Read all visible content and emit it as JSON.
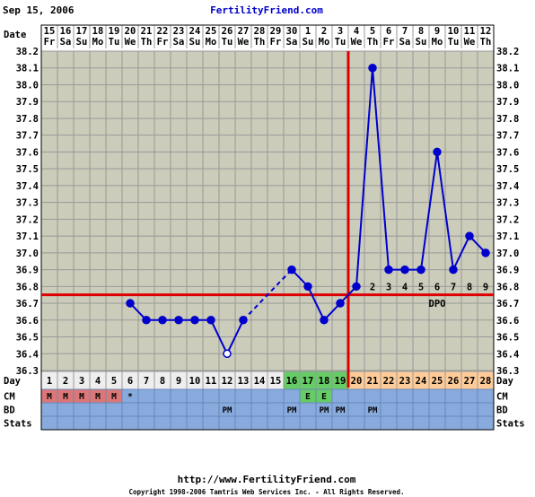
{
  "header": {
    "date_text": "Sep 15, 2006",
    "site_title": "FertilityFriend.com"
  },
  "footer": {
    "url_text": "http://www.FertilityFriend.com",
    "copyright": "Copyright 1998-2006 Tamtris Web Services Inc. - All Rights Reserved."
  },
  "row_labels": {
    "date": "Date",
    "day": "Day",
    "cm": "CM",
    "bd": "BD",
    "stats": "Stats"
  },
  "colors": {
    "line": "#0000cc",
    "coverline": "#dd0000",
    "ovulation_line": "#dd0000",
    "grid_bg": "#ccccbb",
    "grid_line": "#999999",
    "row_blue": "#88aadd",
    "day_pre": "#eeeeee",
    "day_fertile": "#66cc66",
    "day_post": "#ffcc99",
    "menses": "#dd7777"
  },
  "chart_data": {
    "type": "line",
    "title": "",
    "ylabel": "",
    "ylim": [
      36.3,
      38.2
    ],
    "y_ticks": [
      "38.2",
      "38.1",
      "38.0",
      "37.9",
      "37.8",
      "37.7",
      "37.6",
      "37.5",
      "37.4",
      "37.3",
      "37.2",
      "37.1",
      "37.0",
      "36.9",
      "36.8",
      "36.7",
      "36.6",
      "36.5",
      "36.4",
      "36.3"
    ],
    "grid": true,
    "dates": [
      "15",
      "16",
      "17",
      "18",
      "19",
      "20",
      "21",
      "22",
      "23",
      "24",
      "25",
      "26",
      "27",
      "28",
      "29",
      "30",
      "1",
      "2",
      "3",
      "4",
      "5",
      "6",
      "7",
      "8",
      "9",
      "10",
      "11",
      "12"
    ],
    "weekdays": [
      "Fr",
      "Sa",
      "Su",
      "Mo",
      "Tu",
      "We",
      "Th",
      "Fr",
      "Sa",
      "Su",
      "Mo",
      "Tu",
      "We",
      "Th",
      "Fr",
      "Sa",
      "Su",
      "Mo",
      "Tu",
      "We",
      "Th",
      "Fr",
      "Sa",
      "Su",
      "Mo",
      "Tu",
      "We",
      "Th"
    ],
    "cycle_days": [
      "1",
      "2",
      "3",
      "4",
      "5",
      "6",
      "7",
      "8",
      "9",
      "10",
      "11",
      "12",
      "13",
      "14",
      "15",
      "16",
      "17",
      "18",
      "19",
      "20",
      "21",
      "22",
      "23",
      "24",
      "25",
      "26",
      "27",
      "28"
    ],
    "temperatures": [
      null,
      null,
      null,
      null,
      null,
      36.7,
      36.6,
      36.6,
      36.6,
      36.6,
      36.6,
      36.4,
      36.6,
      null,
      null,
      36.9,
      36.8,
      36.6,
      36.7,
      36.8,
      38.1,
      36.9,
      36.9,
      36.9,
      37.6,
      36.9,
      37.1,
      37.0
    ],
    "open_points": [
      12
    ],
    "dashed_segments": [
      [
        13,
        16
      ]
    ],
    "coverline": 36.75,
    "ovulation_day": 19,
    "fertile_days": [
      16,
      17,
      18,
      19
    ],
    "dpo_labels": [
      {
        "day": 21,
        "text": "2"
      },
      {
        "day": 22,
        "text": "3"
      },
      {
        "day": 23,
        "text": "4"
      },
      {
        "day": 24,
        "text": "5"
      },
      {
        "day": 25,
        "text": "6"
      },
      {
        "day": 26,
        "text": "7"
      },
      {
        "day": 27,
        "text": "8"
      },
      {
        "day": 28,
        "text": "9"
      }
    ],
    "dpo_text": "DPO",
    "dpo_text_day": 25,
    "cm_row": [
      "M",
      "M",
      "M",
      "M",
      "M",
      "*",
      "",
      "",
      "",
      "",
      "",
      "",
      "",
      "",
      "",
      "",
      "E",
      "E",
      "",
      "",
      "",
      "",
      "",
      "",
      "",
      "",
      "",
      ""
    ],
    "menses_days": [
      1,
      2,
      3,
      4,
      5
    ],
    "cm_highlight_days": [
      17,
      18
    ],
    "bd_row": [
      "",
      "",
      "",
      "",
      "",
      "",
      "",
      "",
      "",
      "",
      "",
      "PM",
      "",
      "",
      "",
      "PM",
      "",
      "PM",
      "PM",
      "",
      "PM",
      "",
      "",
      "",
      "",
      "",
      "",
      ""
    ]
  }
}
